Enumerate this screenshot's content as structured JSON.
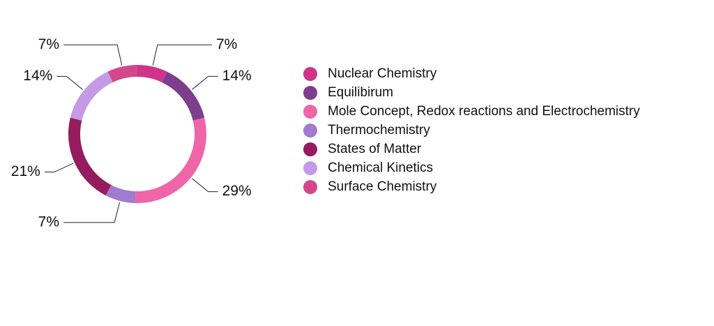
{
  "chart_data": {
    "type": "donut",
    "categories": [
      "Nuclear Chemistry",
      "Equilibirum",
      "Mole Concept, Redox reactions and Electrochemistry",
      "Thermochemistry",
      "States of Matter",
      "Chemical Kinetics",
      "Surface Chemistry"
    ],
    "values": [
      7,
      14,
      29,
      7,
      21,
      14,
      7
    ],
    "value_labels": [
      "7%",
      "14%",
      "29%",
      "7%",
      "21%",
      "14%",
      "7%"
    ],
    "colors": [
      "#d0348a",
      "#7e3e8e",
      "#ef66a8",
      "#a07bd0",
      "#951c5e",
      "#c49ae6",
      "#d4488a"
    ],
    "legend": "right"
  }
}
